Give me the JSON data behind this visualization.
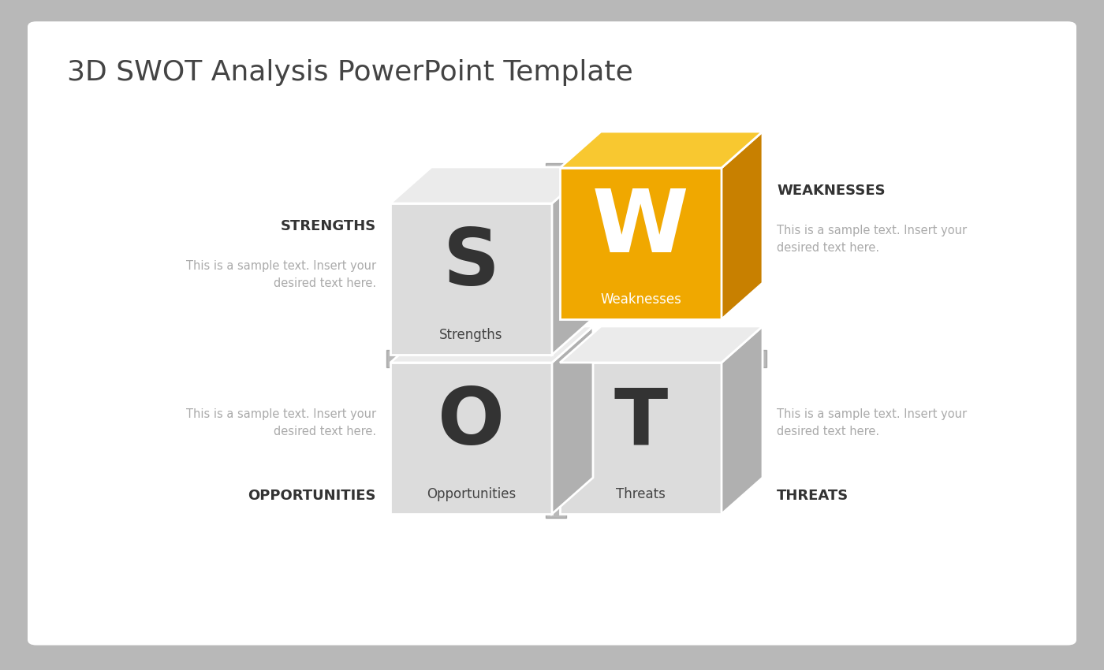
{
  "title": "3D SWOT Analysis PowerPoint Template",
  "title_fontsize": 26,
  "title_color": "#444444",
  "background_slide": "#ffffff",
  "background_outer": "#b8b8b8",
  "quadrants": [
    {
      "letter": "S",
      "label": "Strengths",
      "face_color": "#dcdcdc",
      "top_color": "#ebebeb",
      "side_color": "#b0b0b0",
      "letter_color": "#333333",
      "label_color": "#444444",
      "highlighted": false
    },
    {
      "letter": "W",
      "label": "Weaknesses",
      "face_color": "#f0a800",
      "top_color": "#f8c830",
      "side_color": "#c88000",
      "letter_color": "#ffffff",
      "label_color": "#ffffff",
      "highlighted": true
    },
    {
      "letter": "O",
      "label": "Opportunities",
      "face_color": "#dcdcdc",
      "top_color": "#ebebeb",
      "side_color": "#b0b0b0",
      "letter_color": "#333333",
      "label_color": "#444444",
      "highlighted": false
    },
    {
      "letter": "T",
      "label": "Threats",
      "face_color": "#dcdcdc",
      "top_color": "#ebebeb",
      "side_color": "#b0b0b0",
      "letter_color": "#333333",
      "label_color": "#444444",
      "highlighted": false
    }
  ],
  "sample_text": "This is a sample text. Insert your\ndesired text here.",
  "sample_text_color": "#aaaaaa",
  "sample_text_fontsize": 10.5,
  "sidebar_fontsize": 13
}
